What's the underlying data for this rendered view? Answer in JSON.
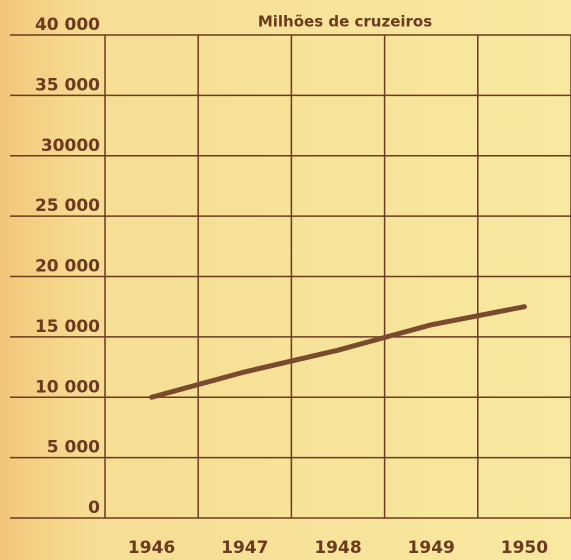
{
  "chart_data": {
    "type": "line",
    "title": "Milhões de cruzeiros",
    "categories": [
      "1946",
      "1947",
      "1948",
      "1949",
      "1950"
    ],
    "values": [
      10000,
      12100,
      13900,
      16000,
      17500
    ],
    "color": "#7a4a2e",
    "ylim": [
      0,
      40000
    ],
    "yticks": [
      0,
      {
        "value": 5000,
        "label": "5 000"
      },
      {
        "value": 10000,
        "label": "10 000"
      },
      {
        "value": 15000,
        "label": "15 000"
      },
      {
        "value": 20000,
        "label": "20 000"
      },
      {
        "value": 25000,
        "label": "25 000"
      },
      {
        "value": 30000,
        "label": "30000"
      },
      {
        "value": 35000,
        "label": "35 000"
      },
      {
        "value": 40000,
        "label": "40 000"
      }
    ],
    "grid": true
  }
}
